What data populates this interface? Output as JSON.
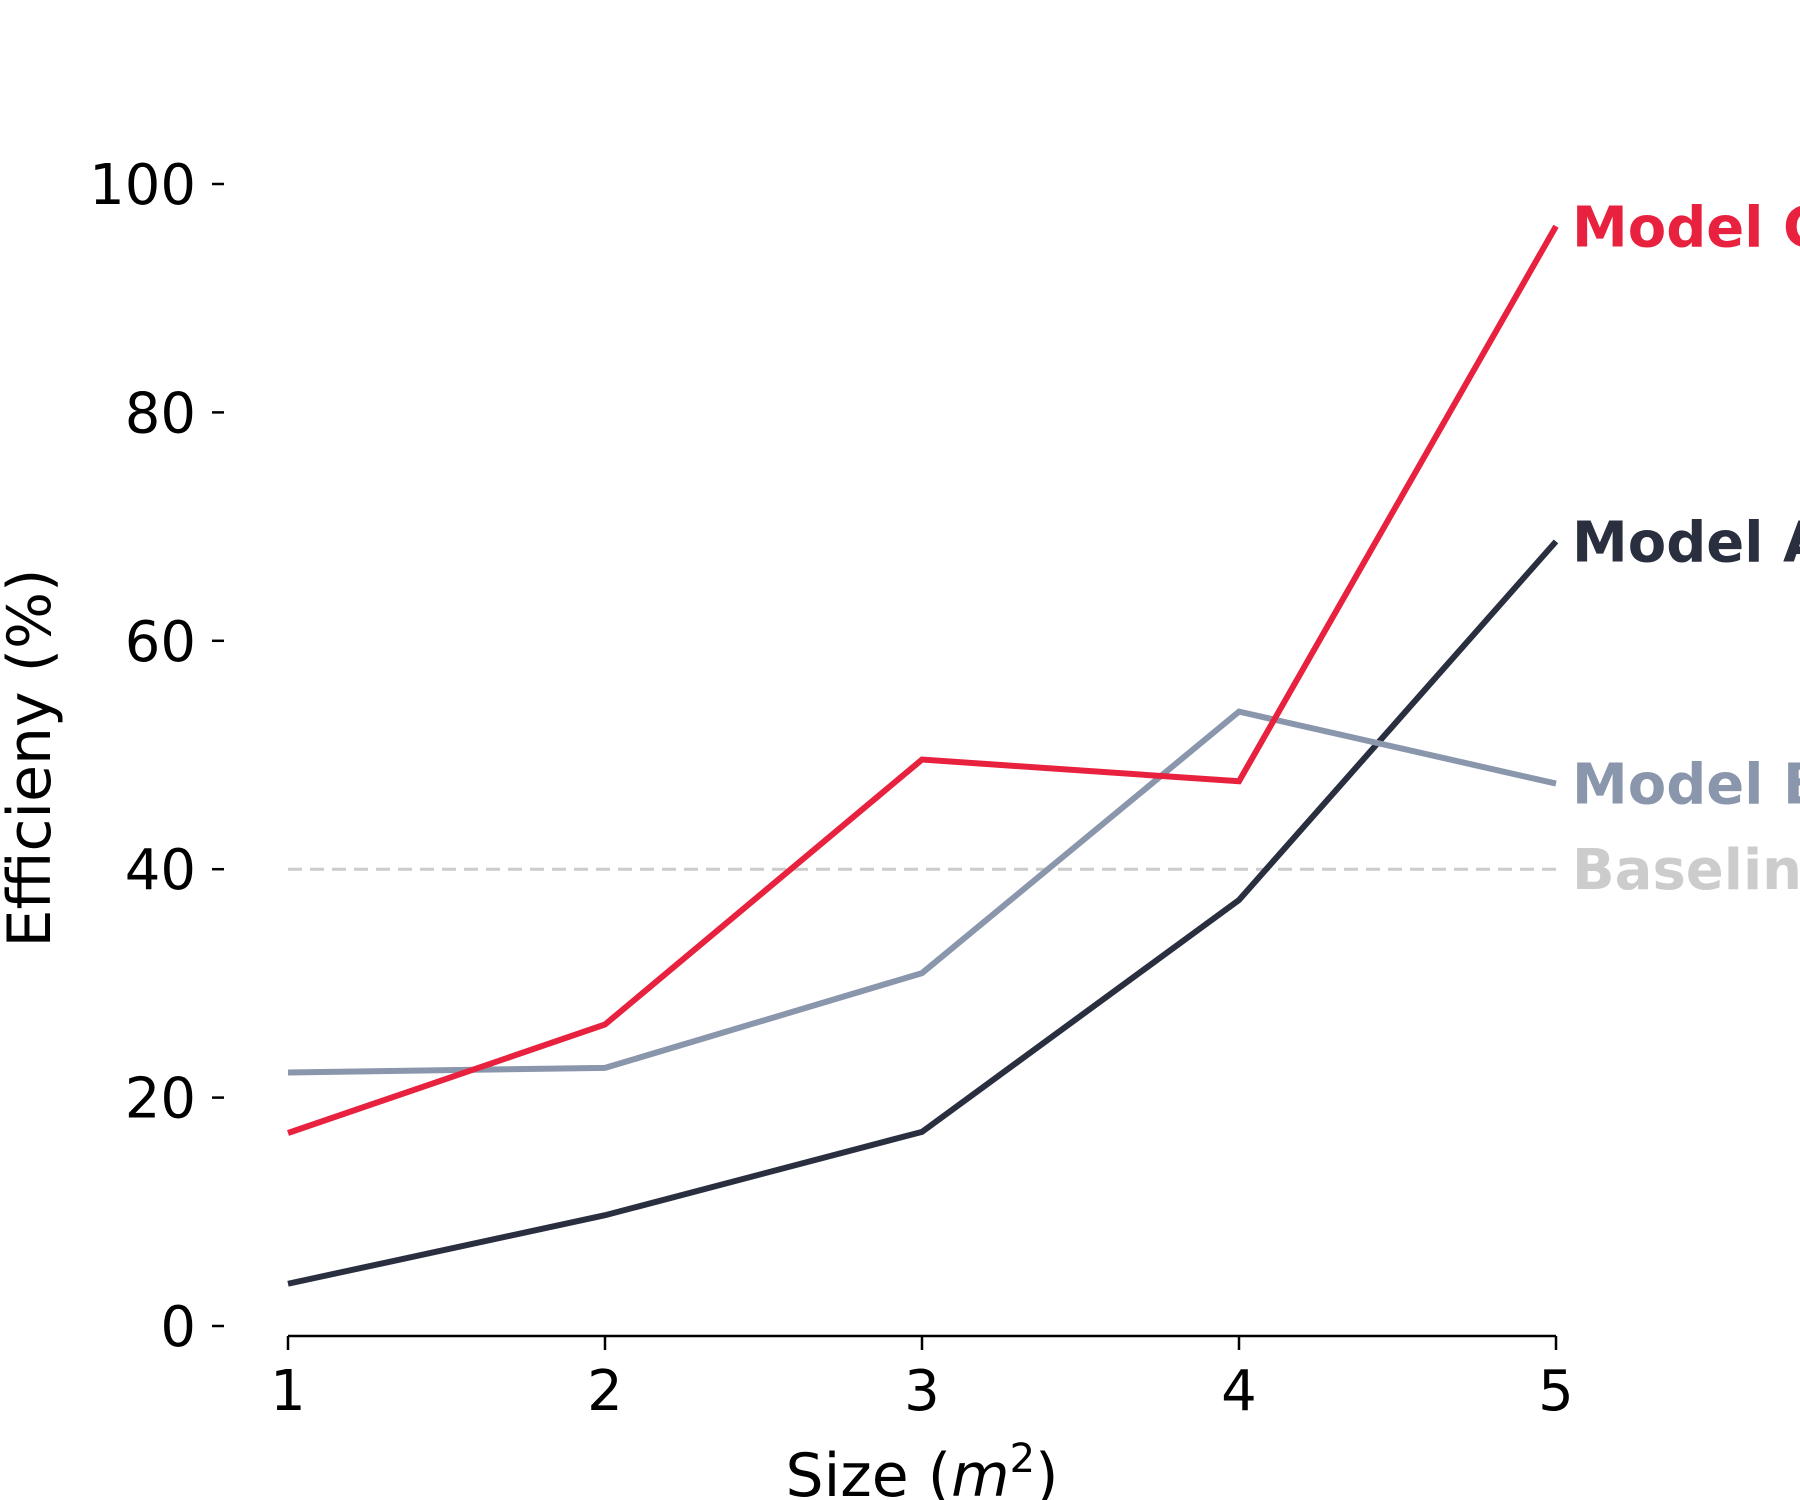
{
  "chart_data": {
    "type": "line",
    "x": [
      1,
      2,
      3,
      4,
      5
    ],
    "xlabel_text": "Size (",
    "xlabel_italic": "m",
    "xlabel_superscript": "2",
    "xlabel_close": ")",
    "ylabel": "Efficieny (%)",
    "xticks": [
      "1",
      "2",
      "3",
      "4",
      "5"
    ],
    "yticks": [
      "0",
      "20",
      "40",
      "60",
      "80",
      "100"
    ],
    "ytick_values": [
      0,
      20,
      40,
      60,
      80,
      100
    ],
    "xlim": [
      1,
      5
    ],
    "ylim": [
      0,
      100
    ],
    "grid": false,
    "legend": "direct labels at line ends (right, clipped)",
    "series": [
      {
        "name": "Model A",
        "label_shown": "Model A",
        "color": "#2a2f40",
        "values": [
          3.7,
          9.7,
          17.0,
          37.3,
          68.7
        ]
      },
      {
        "name": "Model B",
        "label_shown": "Model B",
        "color": "#8a96ac",
        "values": [
          22.2,
          22.6,
          30.9,
          53.8,
          47.5
        ]
      },
      {
        "name": "Model C",
        "label_shown": "Model C",
        "color": "#e8223e",
        "values": [
          16.9,
          26.4,
          49.6,
          47.7,
          96.3
        ]
      }
    ],
    "reference_lines": [
      {
        "name": "Baseline",
        "label_shown": "Baseline",
        "value": 40,
        "color": "#cccccc",
        "style": "dashed"
      }
    ]
  }
}
